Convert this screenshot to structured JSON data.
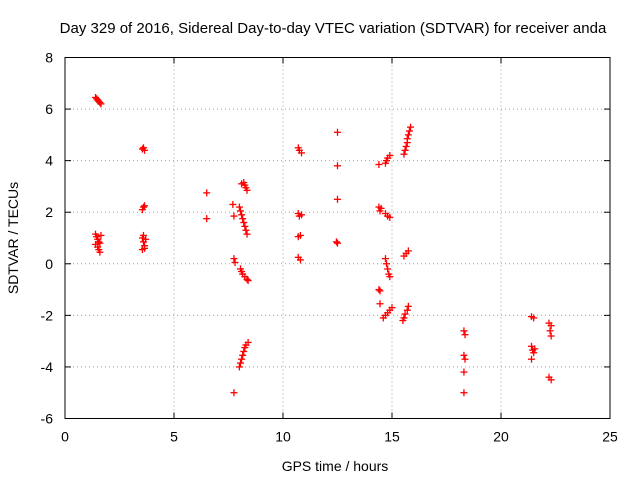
{
  "chart_data": {
    "type": "scatter",
    "title": "Day 329 of 2016, Sidereal Day-to-day VTEC variation (SDTVAR) for receiver anda",
    "xlabel": "GPS time / hours",
    "ylabel": "SDTVAR / TECUs",
    "xlim": [
      0,
      25
    ],
    "ylim": [
      -6,
      8
    ],
    "xticks": [
      0,
      5,
      10,
      15,
      20,
      25
    ],
    "yticks": [
      -6,
      -4,
      -2,
      0,
      2,
      4,
      6,
      8
    ],
    "grid": true,
    "marker": "plus",
    "color": "#ff0000",
    "series": [
      {
        "name": "SDTVAR",
        "points": [
          [
            1.4,
            6.45
          ],
          [
            1.45,
            6.4
          ],
          [
            1.5,
            6.35
          ],
          [
            1.55,
            6.3
          ],
          [
            1.6,
            6.25
          ],
          [
            1.65,
            6.2
          ],
          [
            1.4,
            1.15
          ],
          [
            1.45,
            1.05
          ],
          [
            1.5,
            0.95
          ],
          [
            1.55,
            0.85
          ],
          [
            1.4,
            0.75
          ],
          [
            1.5,
            0.65
          ],
          [
            1.55,
            0.55
          ],
          [
            1.6,
            0.45
          ],
          [
            1.65,
            1.1
          ],
          [
            1.6,
            0.8
          ],
          [
            3.55,
            4.45
          ],
          [
            3.6,
            4.5
          ],
          [
            3.65,
            4.4
          ],
          [
            3.55,
            2.1
          ],
          [
            3.6,
            2.2
          ],
          [
            3.65,
            2.25
          ],
          [
            3.55,
            1.0
          ],
          [
            3.6,
            0.85
          ],
          [
            3.65,
            0.7
          ],
          [
            3.55,
            0.55
          ],
          [
            3.7,
            0.95
          ],
          [
            3.6,
            1.1
          ],
          [
            3.65,
            0.6
          ],
          [
            6.5,
            2.75
          ],
          [
            6.5,
            1.75
          ],
          [
            7.7,
            2.3
          ],
          [
            7.75,
            1.85
          ],
          [
            7.75,
            0.2
          ],
          [
            7.8,
            0.05
          ],
          [
            7.75,
            -5.0
          ],
          [
            8.0,
            2.2
          ],
          [
            8.05,
            2.05
          ],
          [
            8.1,
            1.9
          ],
          [
            8.15,
            1.75
          ],
          [
            8.2,
            1.6
          ],
          [
            8.25,
            1.45
          ],
          [
            8.3,
            1.3
          ],
          [
            8.35,
            1.15
          ],
          [
            8.1,
            3.1
          ],
          [
            8.2,
            3.15
          ],
          [
            8.25,
            3.05
          ],
          [
            8.3,
            2.95
          ],
          [
            8.35,
            2.85
          ],
          [
            8.05,
            -0.2
          ],
          [
            8.1,
            -0.3
          ],
          [
            8.15,
            -0.4
          ],
          [
            8.25,
            -0.5
          ],
          [
            8.35,
            -0.6
          ],
          [
            8.4,
            -0.65
          ],
          [
            8.0,
            -4.0
          ],
          [
            8.05,
            -3.85
          ],
          [
            8.1,
            -3.7
          ],
          [
            8.15,
            -3.55
          ],
          [
            8.2,
            -3.4
          ],
          [
            8.25,
            -3.25
          ],
          [
            8.3,
            -3.15
          ],
          [
            8.4,
            -3.05
          ],
          [
            10.7,
            4.5
          ],
          [
            10.75,
            4.4
          ],
          [
            10.85,
            4.3
          ],
          [
            10.7,
            1.95
          ],
          [
            10.75,
            1.85
          ],
          [
            10.85,
            1.9
          ],
          [
            10.7,
            1.05
          ],
          [
            10.8,
            1.1
          ],
          [
            10.7,
            0.25
          ],
          [
            10.8,
            0.15
          ],
          [
            12.5,
            5.1
          ],
          [
            12.5,
            3.8
          ],
          [
            12.5,
            2.5
          ],
          [
            12.45,
            0.85
          ],
          [
            12.5,
            0.8
          ],
          [
            14.4,
            3.85
          ],
          [
            14.4,
            2.2
          ],
          [
            14.45,
            2.05
          ],
          [
            14.5,
            2.15
          ],
          [
            14.4,
            -1.0
          ],
          [
            14.45,
            -1.05
          ],
          [
            14.45,
            -1.55
          ],
          [
            14.7,
            3.9
          ],
          [
            14.75,
            4.0
          ],
          [
            14.8,
            4.1
          ],
          [
            14.9,
            4.2
          ],
          [
            14.7,
            1.95
          ],
          [
            14.8,
            1.85
          ],
          [
            14.9,
            1.8
          ],
          [
            14.7,
            0.2
          ],
          [
            14.75,
            0.0
          ],
          [
            14.8,
            -0.2
          ],
          [
            14.85,
            -0.4
          ],
          [
            14.9,
            -0.5
          ],
          [
            14.6,
            -2.1
          ],
          [
            14.7,
            -2.0
          ],
          [
            14.8,
            -1.9
          ],
          [
            14.9,
            -1.8
          ],
          [
            15.0,
            -1.7
          ],
          [
            15.55,
            4.25
          ],
          [
            15.6,
            4.4
          ],
          [
            15.65,
            4.55
          ],
          [
            15.7,
            4.7
          ],
          [
            15.7,
            4.85
          ],
          [
            15.75,
            5.0
          ],
          [
            15.8,
            5.15
          ],
          [
            15.85,
            5.3
          ],
          [
            15.55,
            0.3
          ],
          [
            15.65,
            0.4
          ],
          [
            15.75,
            0.5
          ],
          [
            15.5,
            -2.2
          ],
          [
            15.55,
            -2.1
          ],
          [
            15.6,
            -1.95
          ],
          [
            15.7,
            -1.8
          ],
          [
            15.75,
            -1.65
          ],
          [
            18.3,
            -2.6
          ],
          [
            18.35,
            -2.75
          ],
          [
            18.3,
            -3.55
          ],
          [
            18.35,
            -3.7
          ],
          [
            18.3,
            -4.2
          ],
          [
            18.3,
            -5.0
          ],
          [
            21.4,
            -2.05
          ],
          [
            21.5,
            -2.1
          ],
          [
            21.4,
            -3.2
          ],
          [
            21.45,
            -3.35
          ],
          [
            21.5,
            -3.45
          ],
          [
            21.55,
            -3.3
          ],
          [
            21.4,
            -3.7
          ],
          [
            22.2,
            -2.3
          ],
          [
            22.3,
            -2.4
          ],
          [
            22.25,
            -2.6
          ],
          [
            22.3,
            -2.8
          ],
          [
            22.2,
            -4.4
          ],
          [
            22.3,
            -4.5
          ]
        ]
      }
    ]
  }
}
